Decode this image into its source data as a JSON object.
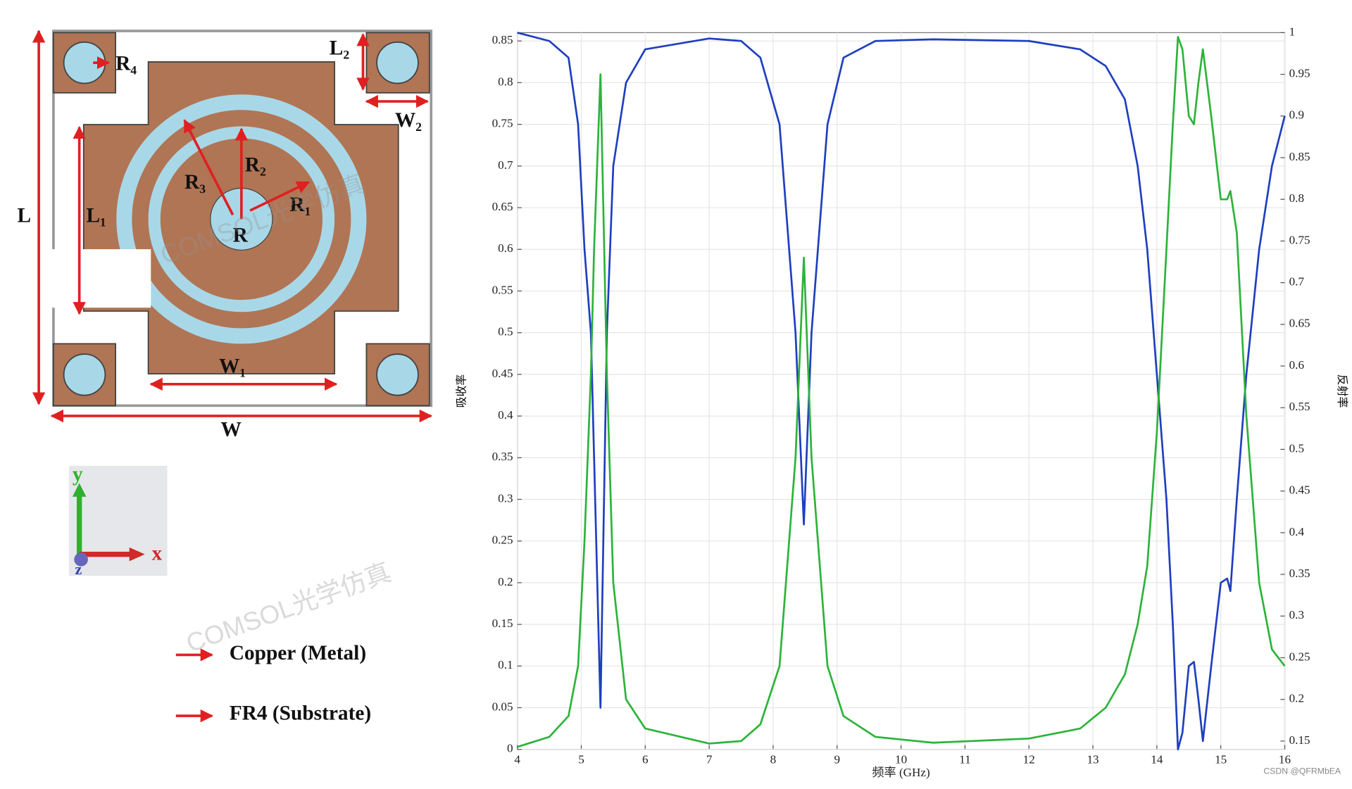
{
  "chart_data": {
    "type": "line",
    "xlabel": "频率 (GHz)",
    "ylabel": "吸收率",
    "y2label": "反射率",
    "x": [
      4,
      4.5,
      4.8,
      4.95,
      5.05,
      5.15,
      5.2,
      5.3,
      5.4,
      5.5,
      5.7,
      6,
      7,
      7.5,
      7.8,
      8.1,
      8.35,
      8.48,
      8.6,
      8.85,
      9.1,
      9.6,
      10.5,
      12,
      12.8,
      13.2,
      13.5,
      13.7,
      13.85,
      14.0,
      14.15,
      14.25,
      14.33,
      14.4,
      14.5,
      14.58,
      14.65,
      14.72,
      14.85,
      15.0,
      15.1,
      15.15,
      15.25,
      15.4,
      15.6,
      15.8,
      16
    ],
    "series": [
      {
        "color": "#1f3fbf",
        "values": [
          0.86,
          0.85,
          0.83,
          0.75,
          0.6,
          0.5,
          0.35,
          0.05,
          0.5,
          0.7,
          0.8,
          0.84,
          0.853,
          0.85,
          0.83,
          0.75,
          0.5,
          0.27,
          0.5,
          0.75,
          0.83,
          0.85,
          0.852,
          0.85,
          0.84,
          0.82,
          0.78,
          0.7,
          0.6,
          0.45,
          0.3,
          0.15,
          0.0,
          0.02,
          0.1,
          0.105,
          0.06,
          0.01,
          0.1,
          0.2,
          0.205,
          0.19,
          0.3,
          0.45,
          0.6,
          0.7,
          0.76
        ]
      },
      {
        "color": "#2db33a",
        "axis": "y2",
        "values": [
          0.143,
          0.155,
          0.18,
          0.24,
          0.39,
          0.59,
          0.74,
          0.95,
          0.59,
          0.34,
          0.2,
          0.165,
          0.147,
          0.15,
          0.17,
          0.24,
          0.49,
          0.73,
          0.49,
          0.24,
          0.18,
          0.155,
          0.148,
          0.153,
          0.165,
          0.19,
          0.23,
          0.29,
          0.36,
          0.52,
          0.74,
          0.89,
          0.995,
          0.98,
          0.9,
          0.89,
          0.94,
          0.98,
          0.9,
          0.8,
          0.8,
          0.81,
          0.76,
          0.54,
          0.34,
          0.26,
          0.24
        ]
      }
    ],
    "xlim": [
      4,
      16
    ],
    "xticks": [
      4,
      5,
      6,
      7,
      8,
      9,
      10,
      11,
      12,
      13,
      14,
      15,
      16
    ],
    "ylim": [
      0,
      0.86
    ],
    "yticks": [
      0,
      0.05,
      0.1,
      0.15,
      0.2,
      0.25,
      0.3,
      0.35,
      0.4,
      0.45,
      0.5,
      0.55,
      0.6,
      0.65,
      0.7,
      0.75,
      0.8,
      0.85
    ],
    "y2lim": [
      0.14,
      1
    ],
    "y2ticks": [
      0.15,
      0.2,
      0.25,
      0.3,
      0.35,
      0.4,
      0.45,
      0.5,
      0.55,
      0.6,
      0.65,
      0.7,
      0.75,
      0.8,
      0.85,
      0.9,
      0.95,
      1
    ],
    "grid": true
  },
  "diagram": {
    "labels": {
      "R4": "R₄",
      "L2": "L₂",
      "W2": "W₂",
      "R2": "R₂",
      "R3": "R₃",
      "R1": "R₁",
      "R": "R",
      "L1": "L₁",
      "L": "L",
      "W1": "W₁",
      "W": "W",
      "y": "y",
      "x": "x",
      "z": "z"
    },
    "legend": [
      "Copper (Metal)",
      "FR4 (Substrate)"
    ]
  },
  "watermark": "COMSOL光学仿真",
  "credit": "CSDN @QFRMbEA"
}
